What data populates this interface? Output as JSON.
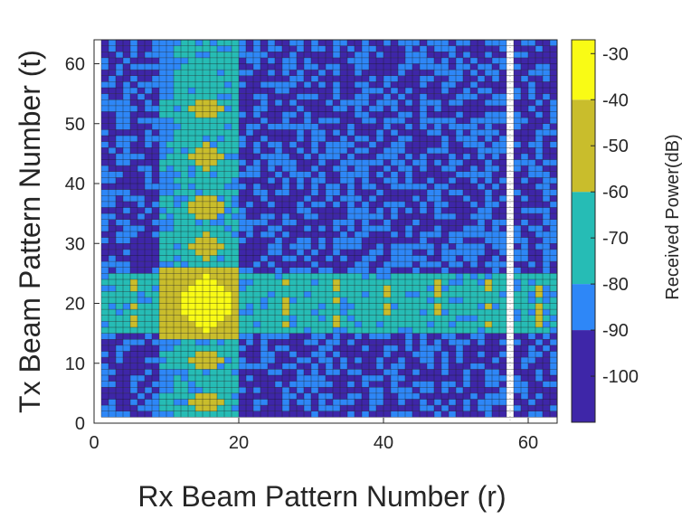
{
  "chart_data": {
    "type": "heatmap",
    "title": "",
    "xlabel": "Rx Beam Pattern Number (r)",
    "ylabel": "Tx Beam Pattern Number (t)",
    "xlim": [
      0,
      64
    ],
    "ylim": [
      0,
      64
    ],
    "xticks": [
      0,
      20,
      40,
      60
    ],
    "yticks": [
      0,
      10,
      20,
      30,
      40,
      50,
      60
    ],
    "x_range": [
      1,
      63
    ],
    "y_range": [
      1,
      63
    ],
    "blank_columns": [
      57
    ],
    "grid": true,
    "colorbar": {
      "label": "Received Power(dB)",
      "ticks": [
        -30,
        -40,
        -50,
        -60,
        -70,
        -80,
        -90,
        -100
      ],
      "levels": [
        {
          "min": -110,
          "max": -90,
          "color": "#3e26a8"
        },
        {
          "min": -90,
          "max": -80,
          "color": "#2e87f7"
        },
        {
          "min": -80,
          "max": -60,
          "color": "#26bcb5"
        },
        {
          "min": -60,
          "max": -40,
          "color": "#c9bd2c"
        },
        {
          "min": -40,
          "max": -27,
          "color": "#f9fb15"
        }
      ]
    },
    "hotspots": [
      {
        "r": 15,
        "t": 19.5,
        "power": -34,
        "note": "peak"
      },
      {
        "r": 15,
        "t": 44,
        "power": -55
      },
      {
        "r": 15,
        "t": 35,
        "power": -55
      },
      {
        "r": 15,
        "t": 29,
        "power": -55
      },
      {
        "r": 15,
        "t": 52,
        "power": -56
      }
    ]
  }
}
